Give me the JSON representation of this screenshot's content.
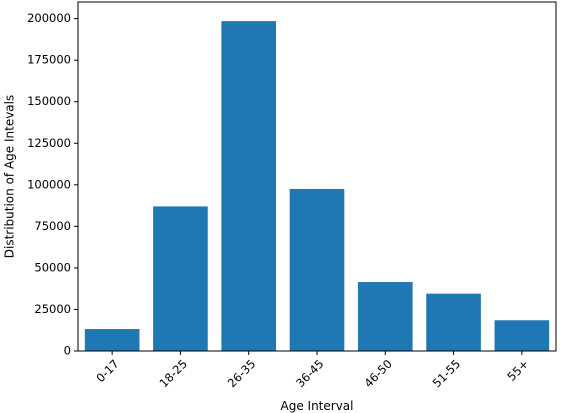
{
  "chart_data": {
    "type": "bar",
    "title": "",
    "xlabel": "Age Interval",
    "ylabel": "Distribution of Age Intevals",
    "categories": [
      "0-17",
      "18-25",
      "26-35",
      "36-45",
      "46-50",
      "51-55",
      "55+"
    ],
    "values": [
      13200,
      87000,
      198500,
      97500,
      41500,
      34500,
      18500
    ],
    "ylim": [
      0,
      210000
    ],
    "yticks": [
      0,
      25000,
      50000,
      75000,
      100000,
      125000,
      150000,
      175000,
      200000
    ],
    "ytick_labels": [
      "0",
      "25000",
      "50000",
      "75000",
      "100000",
      "125000",
      "150000",
      "175000",
      "200000"
    ],
    "bar_color": "#1f77b4",
    "grid": false,
    "legend": "none"
  }
}
